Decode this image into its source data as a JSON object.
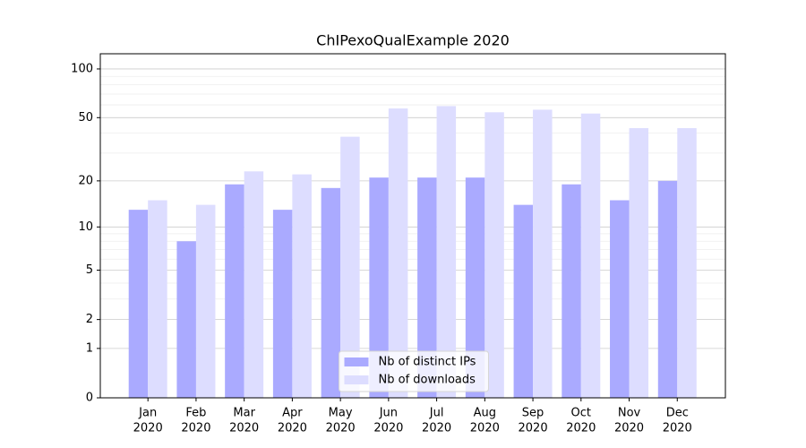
{
  "chart_data": {
    "type": "bar",
    "title": "ChIPexoQualExample 2020",
    "categories": [
      "Jan",
      "Feb",
      "Mar",
      "Apr",
      "May",
      "Jun",
      "Jul",
      "Aug",
      "Sep",
      "Oct",
      "Nov",
      "Dec"
    ],
    "category_years": [
      "2020",
      "2020",
      "2020",
      "2020",
      "2020",
      "2020",
      "2020",
      "2020",
      "2020",
      "2020",
      "2020",
      "2020"
    ],
    "series": [
      {
        "name": "Nb of distinct IPs",
        "color": "#aaaaff",
        "values": [
          13,
          8,
          19,
          13,
          18,
          21,
          21,
          21,
          14,
          19,
          15,
          20
        ]
      },
      {
        "name": "Nb of downloads",
        "color": "#ddddff",
        "values": [
          15,
          14,
          23,
          22,
          38,
          57,
          59,
          54,
          56,
          53,
          43,
          43
        ]
      }
    ],
    "yscale": "log1p",
    "ylim": [
      0,
      124
    ],
    "yticks": [
      0,
      1,
      2,
      5,
      10,
      20,
      50,
      100
    ],
    "yminorticks": [
      3,
      4,
      6,
      7,
      8,
      9,
      30,
      40,
      60,
      70,
      80,
      90
    ],
    "grid": true,
    "legend": "lower center"
  }
}
